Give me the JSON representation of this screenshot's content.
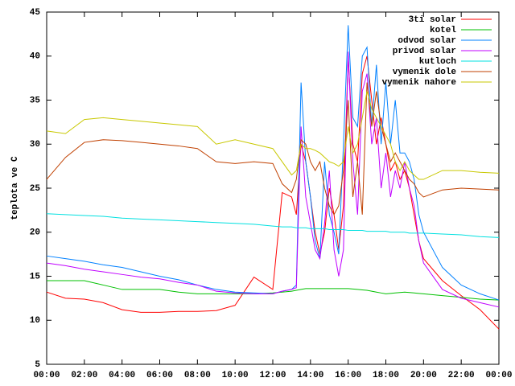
{
  "chart_data": {
    "type": "line",
    "ylabel": "teplota ve C",
    "x": [
      0,
      1,
      2,
      3,
      4,
      5,
      6,
      7,
      8,
      9,
      10,
      11,
      12,
      12.5,
      13,
      13.25,
      13.5,
      13.75,
      14,
      14.25,
      14.5,
      14.75,
      15,
      15.25,
      15.5,
      15.75,
      16,
      16.25,
      16.5,
      16.75,
      17,
      17.25,
      17.5,
      17.75,
      18,
      18.25,
      18.5,
      18.75,
      19,
      19.25,
      19.5,
      19.75,
      20,
      21,
      22,
      23,
      24
    ],
    "xlim": [
      0,
      24
    ],
    "xticks": [
      {
        "value": 0,
        "label": "00:00"
      },
      {
        "value": 2,
        "label": "02:00"
      },
      {
        "value": 4,
        "label": "04:00"
      },
      {
        "value": 6,
        "label": "06:00"
      },
      {
        "value": 8,
        "label": "08:00"
      },
      {
        "value": 10,
        "label": "10:00"
      },
      {
        "value": 12,
        "label": "12:00"
      },
      {
        "value": 14,
        "label": "14:00"
      },
      {
        "value": 16,
        "label": "16:00"
      },
      {
        "value": 18,
        "label": "18:00"
      },
      {
        "value": 20,
        "label": "20:00"
      },
      {
        "value": 22,
        "label": "22:00"
      },
      {
        "value": 24,
        "label": "00:00"
      }
    ],
    "ylim": [
      5,
      45
    ],
    "yticks": [
      5,
      10,
      15,
      20,
      25,
      30,
      35,
      40,
      45
    ],
    "legend": "top-right",
    "series": [
      {
        "name": "3ti solar",
        "color": "#ff0000",
        "values": [
          13.2,
          12.5,
          12.4,
          12,
          11.2,
          10.9,
          10.9,
          11,
          11,
          11.1,
          11.7,
          14.9,
          13.5,
          24.5,
          24,
          22,
          30,
          28,
          24,
          20,
          17.5,
          20,
          25,
          22,
          18,
          23,
          40,
          30,
          28,
          38,
          40,
          35,
          30,
          33,
          30,
          27,
          28,
          26,
          27,
          25,
          22,
          19,
          17,
          14.5,
          12.8,
          11.2,
          9
        ]
      },
      {
        "name": "kotel",
        "color": "#00c000",
        "values": [
          14.5,
          14.5,
          14.5,
          14,
          13.5,
          13.5,
          13.5,
          13.2,
          13,
          13,
          13,
          13,
          13.1,
          13.2,
          13.3,
          13.4,
          13.5,
          13.6,
          13.6,
          13.6,
          13.6,
          13.6,
          13.6,
          13.6,
          13.6,
          13.6,
          13.6,
          13.55,
          13.5,
          13.45,
          13.4,
          13.3,
          13.2,
          13.1,
          13,
          13.05,
          13.1,
          13.15,
          13.2,
          13.15,
          13.1,
          13.05,
          13,
          12.8,
          12.6,
          12.4,
          12.3
        ]
      },
      {
        "name": "odvod solar",
        "color": "#0080ff",
        "values": [
          17.3,
          17,
          16.7,
          16.3,
          16,
          15.5,
          15,
          14.6,
          14,
          13.5,
          13.2,
          13.1,
          13,
          13.3,
          13.5,
          14,
          37,
          28,
          24,
          19,
          17,
          28,
          22,
          20,
          17.5,
          30,
          43.5,
          33,
          32,
          40,
          41,
          32,
          39,
          30,
          37,
          30,
          35,
          29,
          29,
          28,
          26,
          22,
          20,
          16,
          14,
          13,
          12.3
        ]
      },
      {
        "name": "privod solar",
        "color": "#c000ff",
        "values": [
          16.5,
          16.2,
          15.8,
          15.5,
          15.2,
          14.9,
          14.7,
          14.3,
          14,
          13.3,
          13.1,
          13,
          13,
          13.3,
          13.5,
          13.7,
          32,
          24,
          21,
          18,
          17,
          21,
          27,
          18,
          15,
          18,
          40.5,
          28,
          22,
          36,
          38,
          30,
          33,
          25,
          29,
          24,
          27,
          25,
          28,
          25,
          23,
          19,
          16.5,
          13.5,
          12.5,
          12,
          11.5
        ]
      },
      {
        "name": "kutloch",
        "color": "#00e0e0",
        "values": [
          22.1,
          22,
          21.9,
          21.8,
          21.6,
          21.5,
          21.4,
          21.3,
          21.2,
          21.1,
          21,
          20.9,
          20.7,
          20.6,
          20.6,
          20.5,
          20.5,
          20.5,
          20.4,
          20.4,
          20.4,
          20.4,
          20.3,
          20.3,
          20.3,
          20.3,
          20.2,
          20.2,
          20.2,
          20.2,
          20.1,
          20.1,
          20.1,
          20.1,
          20.1,
          20,
          20,
          20,
          20,
          19.9,
          19.9,
          19.9,
          19.9,
          19.8,
          19.7,
          19.5,
          19.4
        ]
      },
      {
        "name": "vymenik dole",
        "color": "#c04000",
        "values": [
          26,
          28.5,
          30.2,
          30.5,
          30.4,
          30.2,
          30,
          29.8,
          29.5,
          28,
          27.8,
          28,
          27.8,
          25.5,
          24.5,
          26,
          30.5,
          30,
          28,
          27,
          28,
          25,
          23,
          22,
          23,
          27,
          35,
          24,
          28,
          22,
          37,
          32,
          36,
          32,
          30,
          28,
          29,
          28,
          27,
          26,
          25.5,
          24.5,
          24,
          24.8,
          25,
          24.9,
          24.8
        ]
      },
      {
        "name": "vymenik nahore",
        "color": "#c8c800",
        "values": [
          31.5,
          31.2,
          32.8,
          33,
          32.8,
          32.6,
          32.4,
          32.2,
          32,
          30,
          30.5,
          30,
          29.5,
          28,
          26.5,
          27,
          30,
          29.5,
          29.5,
          29.3,
          29,
          28.5,
          28,
          27.8,
          27.5,
          28,
          32,
          29,
          30,
          33,
          36,
          34,
          33,
          32,
          31,
          30,
          28,
          27,
          28,
          27,
          26.5,
          26,
          26,
          27,
          27,
          26.8,
          26.7
        ]
      }
    ]
  }
}
